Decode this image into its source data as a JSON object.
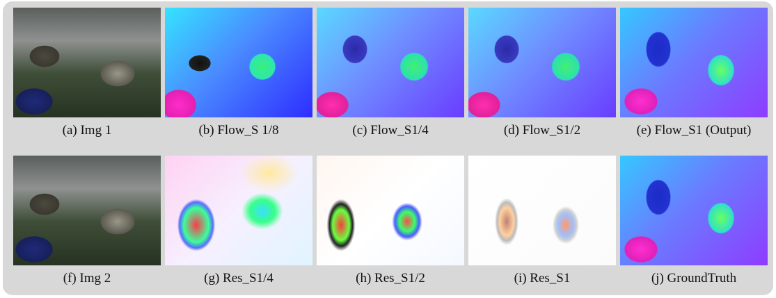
{
  "panels": [
    {
      "caption": "(a) Img 1"
    },
    {
      "caption": "(b) Flow_S 1/8"
    },
    {
      "caption": "(c) Flow_S1/4"
    },
    {
      "caption": "(d) Flow_S1/2"
    },
    {
      "caption": "(e) Flow_S1 (Output)"
    },
    {
      "caption": "(f) Img 2"
    },
    {
      "caption": "(g) Res_S1/4"
    },
    {
      "caption": "(h) Res_S1/2"
    },
    {
      "caption": "(i) Res_S1"
    },
    {
      "caption": "(j) GroundTruth"
    }
  ]
}
